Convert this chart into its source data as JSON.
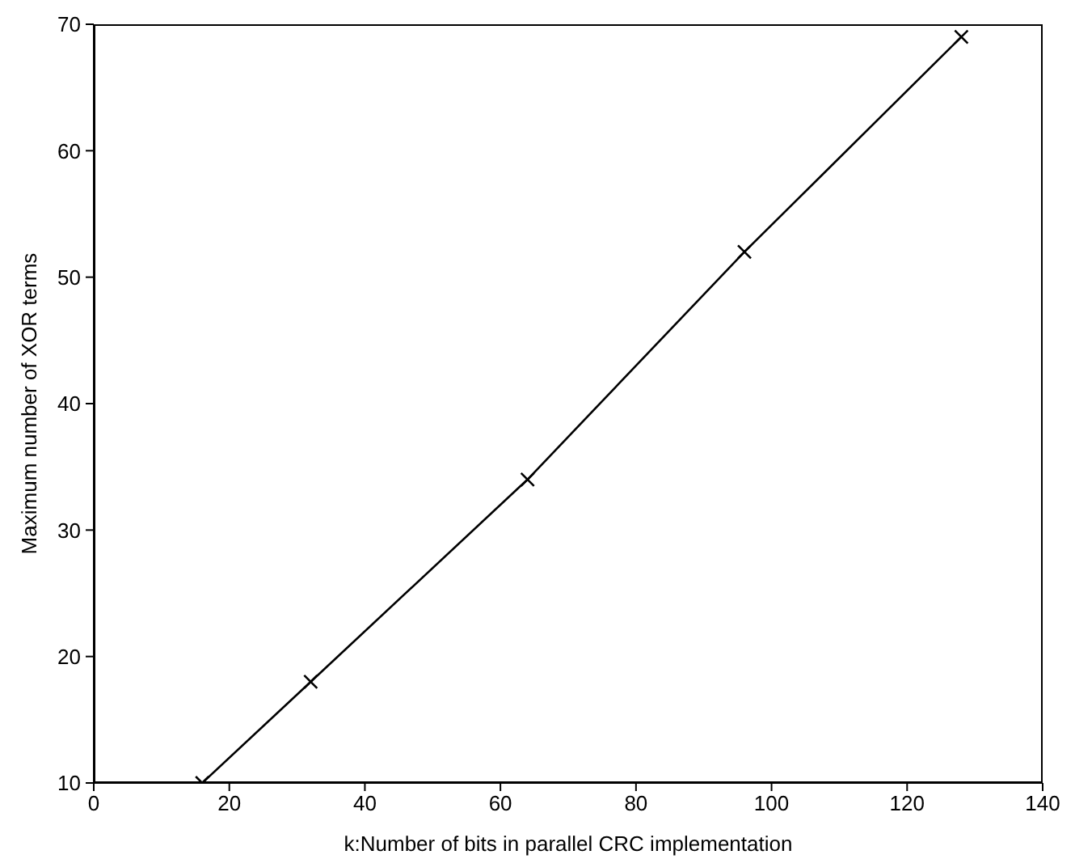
{
  "chart_data": {
    "type": "line",
    "xlabel": "k:Number of bits in parallel CRC implementation",
    "ylabel": "Maximum number of XOR terms",
    "x": [
      16,
      32,
      64,
      96,
      128
    ],
    "series": [
      {
        "color": "#000000",
        "values": [
          10,
          18,
          34,
          52,
          69
        ]
      }
    ],
    "xlim": [
      0,
      140
    ],
    "xticks": [
      0,
      20,
      40,
      60,
      80,
      100,
      120,
      140
    ],
    "ylim": [
      10,
      70
    ],
    "yticks": [
      10,
      20,
      30,
      40,
      50,
      60,
      70
    ],
    "grid": false,
    "legend": false,
    "marker": "cross",
    "line_style": "solid"
  }
}
